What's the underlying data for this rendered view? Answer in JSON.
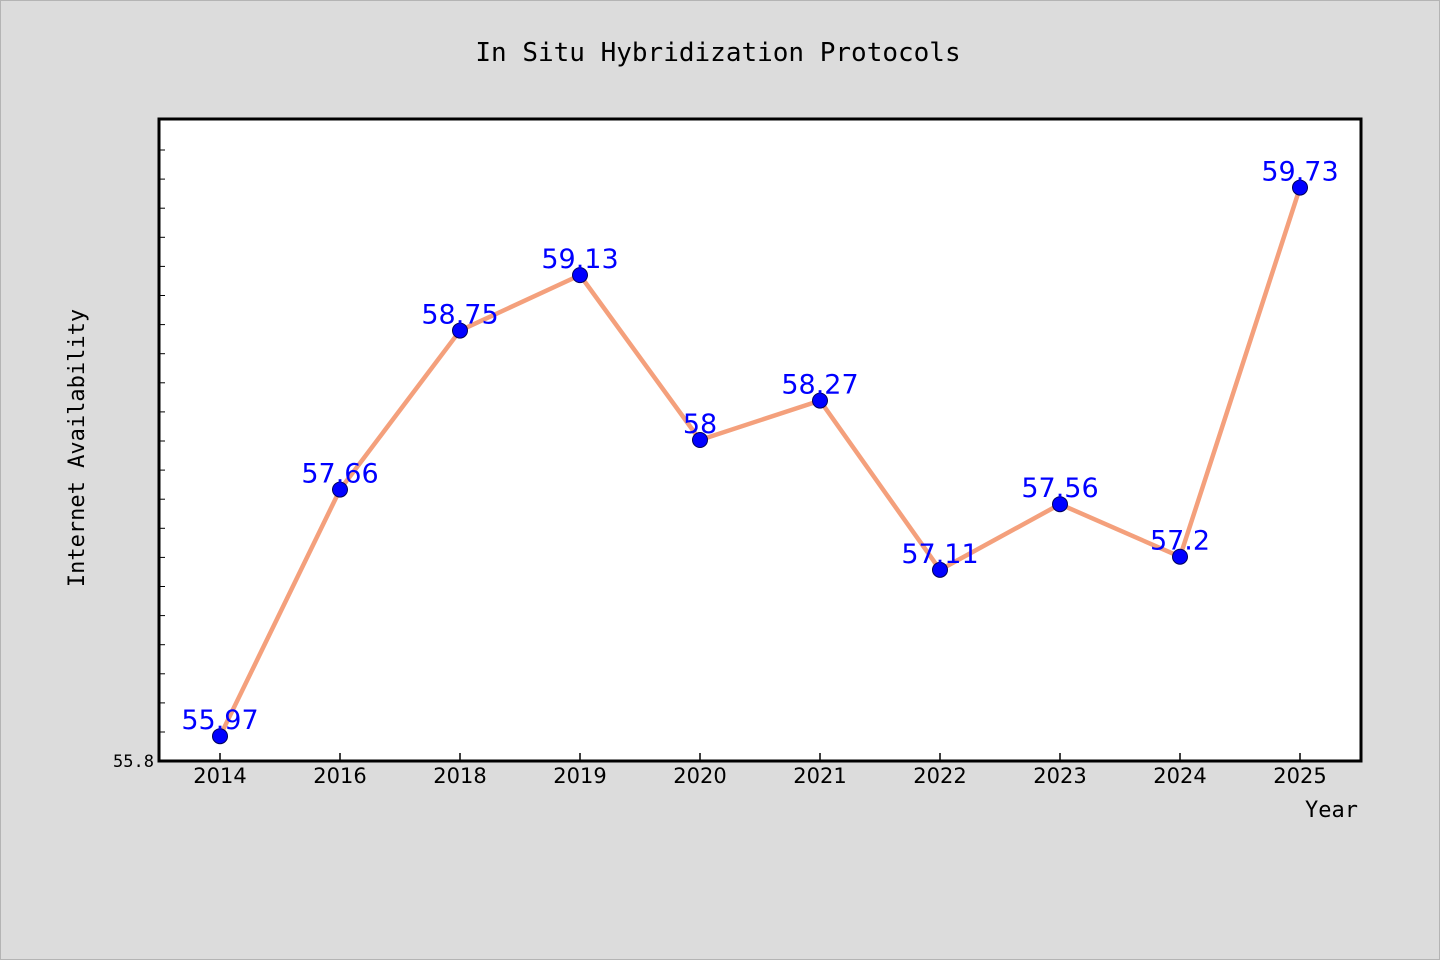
{
  "chart_data": {
    "type": "line",
    "title": "In Situ Hybridization Protocols",
    "xlabel": "Year",
    "ylabel": "Internet Availability",
    "categories": [
      "2014",
      "2016",
      "2018",
      "2019",
      "2020",
      "2021",
      "2022",
      "2023",
      "2024",
      "2025"
    ],
    "series": [
      {
        "values": [
          55.97,
          57.66,
          58.75,
          59.13,
          58,
          58.27,
          57.11,
          57.56,
          57.2,
          59.73
        ],
        "labels": [
          "55.97",
          "57.66",
          "58.75",
          "59.13",
          "58",
          "58.27",
          "57.11",
          "57.56",
          "57.2",
          "59.73"
        ]
      }
    ],
    "y_tick_labels": [
      "55.8"
    ],
    "ylim": [
      55.8,
      60.2
    ],
    "grid": false,
    "line_color": "#f4a07c",
    "marker_color": "#0000ff",
    "label_color": "#0000ff",
    "background_color": "#dcdcdc",
    "plot_background": "#ffffff"
  }
}
